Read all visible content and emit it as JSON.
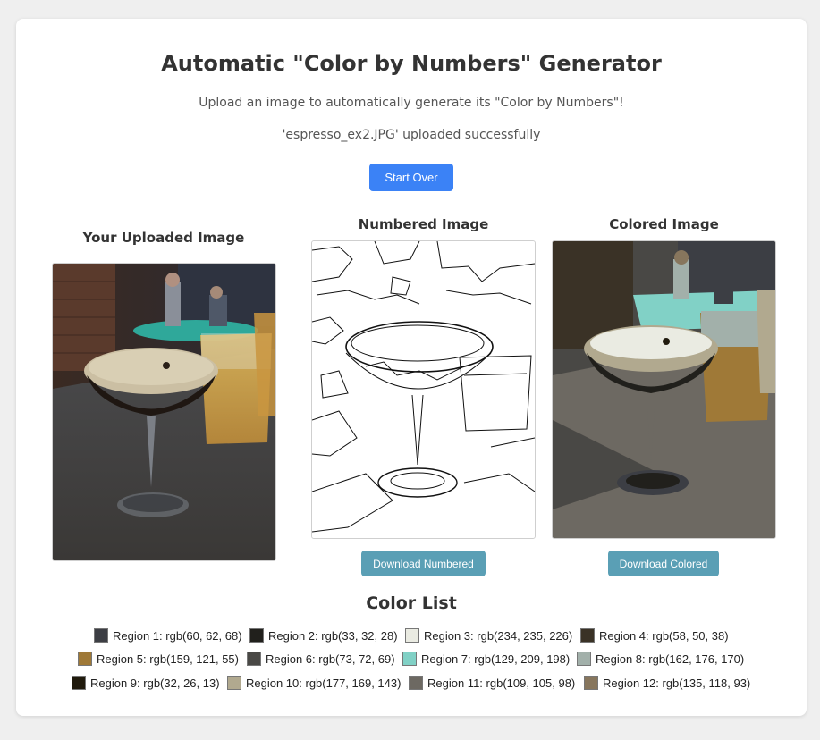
{
  "header": {
    "title": "Automatic \"Color by Numbers\" Generator",
    "subtitle": "Upload an image to automatically generate its \"Color by Numbers\"!",
    "status": "'espresso_ex2.JPG' uploaded successfully",
    "start_over_label": "Start Over"
  },
  "columns": {
    "uploaded_title": "Your Uploaded Image",
    "numbered_title": "Numbered Image",
    "colored_title": "Colored Image",
    "download_numbered_label": "Download Numbered",
    "download_colored_label": "Download Colored"
  },
  "color_list": {
    "title": "Color List",
    "regions": [
      {
        "label": "Region 1: rgb(60, 62, 68)",
        "color": "#3c3e44"
      },
      {
        "label": "Region 2: rgb(33, 32, 28)",
        "color": "#21201c"
      },
      {
        "label": "Region 3: rgb(234, 235, 226)",
        "color": "#eaebe2"
      },
      {
        "label": "Region 4: rgb(58, 50, 38)",
        "color": "#3a3226"
      },
      {
        "label": "Region 5: rgb(159, 121, 55)",
        "color": "#9f7937"
      },
      {
        "label": "Region 6: rgb(73, 72, 69)",
        "color": "#494845"
      },
      {
        "label": "Region 7: rgb(129, 209, 198)",
        "color": "#81d1c6"
      },
      {
        "label": "Region 8: rgb(162, 176, 170)",
        "color": "#a2b0aa"
      },
      {
        "label": "Region 9: rgb(32, 26, 13)",
        "color": "#201a0d"
      },
      {
        "label": "Region 10: rgb(177, 169, 143)",
        "color": "#b1a98f"
      },
      {
        "label": "Region 11: rgb(109, 105, 98)",
        "color": "#6d6962"
      },
      {
        "label": "Region 12: rgb(135, 118, 93)",
        "color": "#87765d"
      }
    ]
  }
}
